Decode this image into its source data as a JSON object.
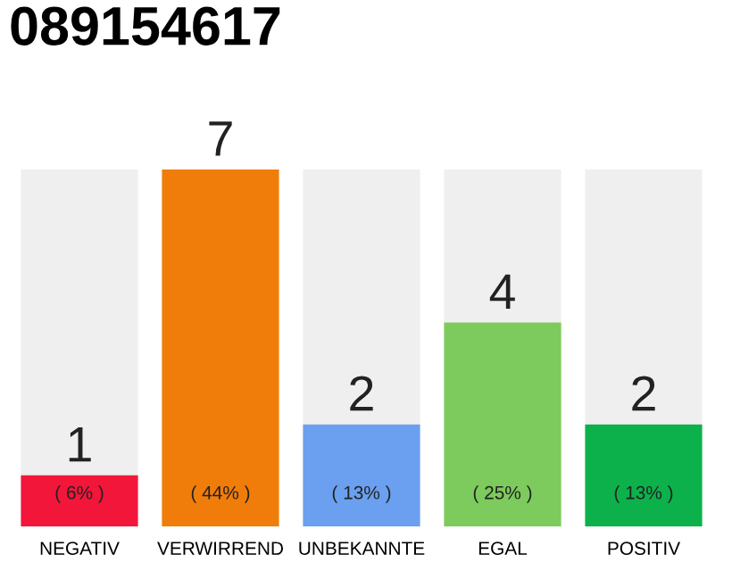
{
  "chart_data": {
    "type": "bar",
    "title": "089154617",
    "categories": [
      "NEGATIV",
      "VERWIRREND",
      "UNBEKANNTE",
      "EGAL",
      "POSITIV"
    ],
    "values": [
      1,
      7,
      2,
      4,
      2
    ],
    "colors": [
      "#f2163a",
      "#f07d0a",
      "#6aa0ef",
      "#7ccb5c",
      "#0db14b"
    ],
    "data_labels": true,
    "annotations": [
      "( 6% )",
      "( 44% )",
      "( 13% )",
      "( 25% )",
      "( 13% )"
    ],
    "tick_labels": "x"
  }
}
